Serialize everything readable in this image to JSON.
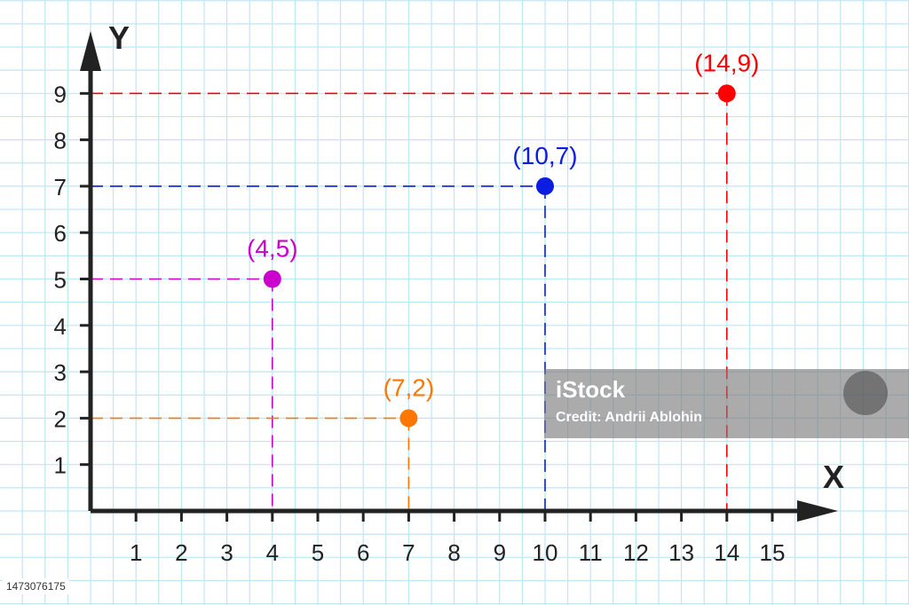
{
  "chart_data": {
    "type": "scatter",
    "title": "",
    "xlabel": "X",
    "ylabel": "Y",
    "xlim": [
      0,
      15
    ],
    "ylim": [
      0,
      9
    ],
    "x_ticks": [
      "1",
      "2",
      "3",
      "4",
      "5",
      "6",
      "7",
      "8",
      "9",
      "10",
      "11",
      "12",
      "13",
      "14",
      "15"
    ],
    "y_ticks": [
      "1",
      "2",
      "3",
      "4",
      "5",
      "6",
      "7",
      "8",
      "9"
    ],
    "grid": true,
    "grid_color": "#bfe6f5",
    "axis_color": "#222222",
    "points": [
      {
        "x": 4,
        "y": 5,
        "label": "(4,5)",
        "color": "#cc00cc"
      },
      {
        "x": 7,
        "y": 2,
        "label": "(7,2)",
        "color": "#ff7700"
      },
      {
        "x": 10,
        "y": 7,
        "label": "(10,7)",
        "color": "#0b1de0"
      },
      {
        "x": 14,
        "y": 9,
        "label": "(14,9)",
        "color": "#ff0000"
      }
    ]
  },
  "watermark": {
    "logo": "iStock",
    "credit": "Credit: Andrii Ablohin"
  },
  "image_id": "1473076175"
}
